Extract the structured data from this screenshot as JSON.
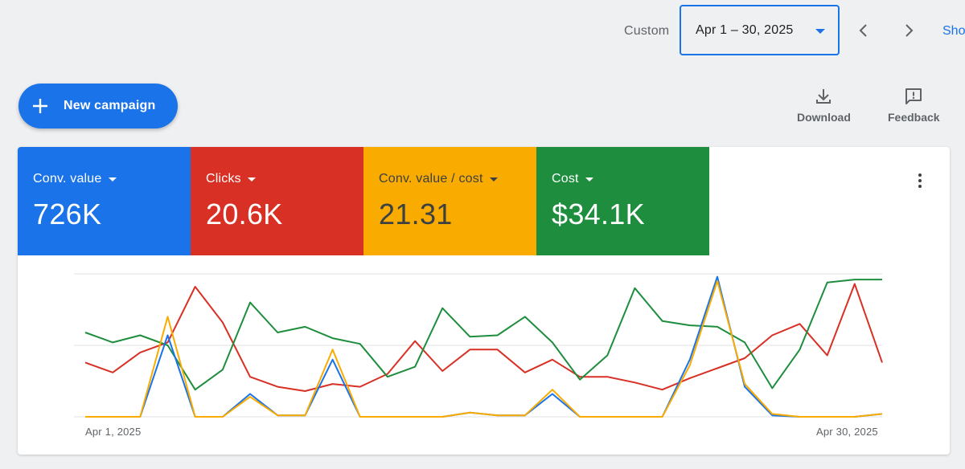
{
  "header": {
    "range_label": "Custom",
    "date_range": "Apr 1 – 30, 2025",
    "show_link": "Sho"
  },
  "actions": {
    "new_campaign": "New campaign",
    "download": "Download",
    "feedback": "Feedback"
  },
  "metrics": [
    {
      "label": "Conv. value",
      "value": "726K",
      "color": "#1a73e8"
    },
    {
      "label": "Clicks",
      "value": "20.6K",
      "color": "#d93025"
    },
    {
      "label": "Conv. value / cost",
      "value": "21.31",
      "color": "#f9ab00"
    },
    {
      "label": "Cost",
      "value": "$34.1K",
      "color": "#1e8e3e"
    }
  ],
  "chart_data": {
    "type": "line",
    "x_start_label": "Apr 1, 2025",
    "x_end_label": "Apr 30, 2025",
    "grid": true,
    "series": [
      {
        "name": "Conv. value",
        "color": "#1a73e8",
        "values": [
          0,
          0,
          0,
          57,
          0,
          0,
          16,
          1,
          1,
          40,
          0,
          0,
          0,
          0,
          3,
          1,
          1,
          16,
          0,
          0,
          0,
          0,
          40,
          98,
          21,
          1,
          0,
          0,
          0,
          2
        ]
      },
      {
        "name": "Clicks",
        "color": "#d93025",
        "values": [
          38,
          31,
          45,
          52,
          91,
          66,
          28,
          21,
          18,
          23,
          21,
          30,
          53,
          32,
          47,
          47,
          31,
          40,
          28,
          28,
          24,
          19,
          27,
          34,
          41,
          57,
          65,
          43,
          93,
          38
        ]
      },
      {
        "name": "Conv. value / cost",
        "color": "#f9ab00",
        "values": [
          0,
          0,
          0,
          70,
          0,
          0,
          14,
          1,
          1,
          47,
          0,
          0,
          0,
          0,
          3,
          1,
          1,
          19,
          0,
          0,
          0,
          0,
          36,
          95,
          23,
          2,
          0,
          0,
          0,
          2
        ]
      },
      {
        "name": "Cost",
        "color": "#1e8e3e",
        "values": [
          59,
          52,
          57,
          50,
          19,
          33,
          80,
          59,
          63,
          55,
          51,
          28,
          35,
          76,
          56,
          57,
          70,
          52,
          26,
          43,
          90,
          67,
          64,
          63,
          52,
          20,
          47,
          94,
          96,
          96
        ]
      }
    ]
  }
}
